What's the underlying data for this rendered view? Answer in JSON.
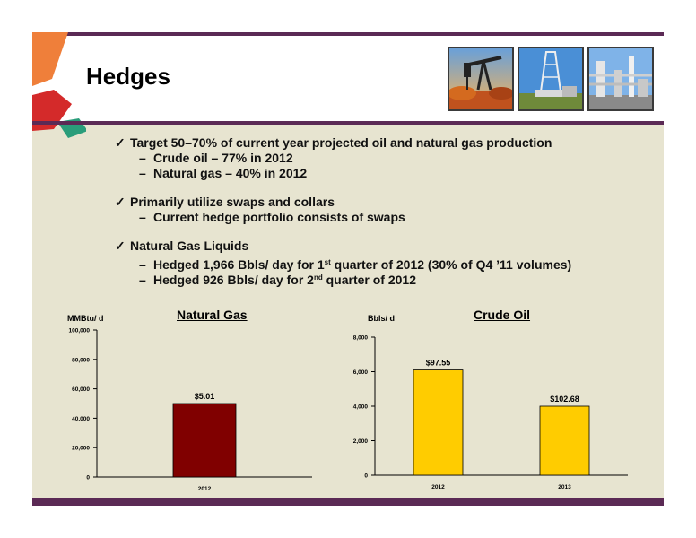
{
  "slide": {
    "title": "Hedges",
    "colors": {
      "frame": "#5b2a55",
      "background": "#e7e4d0",
      "gas_bar": "#800000",
      "oil_bar": "#ffcc00"
    }
  },
  "photos": [
    {
      "icon": "pumpjack-photo"
    },
    {
      "icon": "drilling-rig-photo"
    },
    {
      "icon": "gas-plant-photo"
    }
  ],
  "bullets": [
    {
      "text": "Target 50–70%  of current year projected oil and natural gas production",
      "subs": [
        "Crude oil – 77%  in 2012",
        "Natural gas – 40%  in 2012"
      ]
    },
    {
      "text": "Primarily utilize swaps and collars",
      "subs": [
        "Current hedge portfolio consists of swaps"
      ]
    },
    {
      "text": "Natural Gas Liquids",
      "subs_rich": [
        {
          "a": "Hedged 1,966 Bbls/ day for 1",
          "sup": "st",
          "b": " quarter of 2012 (30%  of Q4 ’11 volumes)"
        },
        {
          "a": "Hedged 926 Bbls/ day for 2",
          "sup": "nd",
          "b": " quarter of 2012"
        }
      ]
    }
  ],
  "chart_data": [
    {
      "type": "bar",
      "title": "Natural Gas",
      "ylabel": "MMBtu/ d",
      "categories": [
        "2012"
      ],
      "values": [
        50000
      ],
      "data_labels": [
        "$5.01"
      ],
      "ylim": [
        0,
        100000
      ],
      "yticks": [
        0,
        20000,
        40000,
        60000,
        80000,
        100000
      ],
      "ytick_labels": [
        "0",
        "20,000",
        "40,000",
        "60,000",
        "80,000",
        "100,000"
      ],
      "color": "#800000",
      "grid": false
    },
    {
      "type": "bar",
      "title": "Crude Oil",
      "ylabel": "Bbls/ d",
      "categories": [
        "2012",
        "2013"
      ],
      "values": [
        6100,
        4000
      ],
      "data_labels": [
        "$97.55",
        "$102.68"
      ],
      "ylim": [
        0,
        8000
      ],
      "yticks": [
        0,
        2000,
        4000,
        6000,
        8000
      ],
      "ytick_labels": [
        "0",
        "2,000",
        "4,000",
        "6,000",
        "8,000"
      ],
      "color": "#ffcc00",
      "grid": false
    }
  ]
}
